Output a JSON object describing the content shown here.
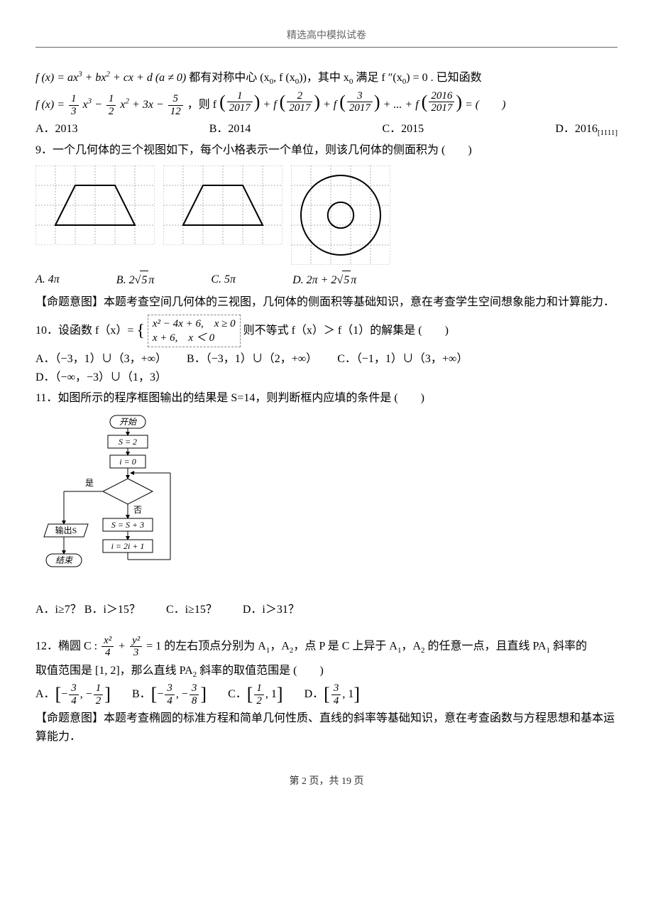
{
  "header": "精选高中模拟试卷",
  "q8": {
    "line1_pre": "f (x) = ax",
    "line1_post": "+ bx",
    "line1_post2": "+ cx + d (a ≠ 0)",
    "line1_text": " 都有对称中心 (x",
    "line1_text2": ", f (x",
    "line1_text3": "))，其中 x",
    "line1_text4": " 满足 f ″(x",
    "line1_text5": ") = 0 . 已知函数",
    "line2_lead": "f (x) = ",
    "frac1n": "1",
    "frac1d": "3",
    "mid1": "x",
    "frac2n": "1",
    "frac2d": "2",
    "mid2": "x",
    "tail2": " + 3x − ",
    "frac3n": "5",
    "frac3d": "12",
    "then": "，则 f",
    "arg1n": "1",
    "arg1d": "2017",
    "plus": "+ f",
    "arg2n": "2",
    "arg2d": "2017",
    "arg3n": "3",
    "arg3d": "2017",
    "dots": "+ ... + f",
    "arg4n": "2016",
    "arg4d": "2017",
    "eq": " = (　　)",
    "optA": "A．2013",
    "optB": "B．2014",
    "optC": "C．2015",
    "optD": "D．2016",
    "optD_extra": "[1111]"
  },
  "q9": {
    "stem": "9．一个几何体的三个视图如下，每个小格表示一个单位，则该几何体的侧面积为 (　　)",
    "optA": "A. 4π",
    "optB_pre": "B. 2",
    "optB_rad": "5",
    "optB_post": "π",
    "optC": "C.  5π",
    "optD_pre": "D.  2π + 2",
    "optD_rad": "5",
    "optD_post": "π",
    "note": "【命题意图】本题考查空间几何体的三视图，几何体的侧面积等基础知识，意在考查学生空间想象能力和计算能力．"
  },
  "q10": {
    "stem_pre": "10．设函数 f（x）= ",
    "piece1": "x² − 4x + 6,　x ≥ 0",
    "piece2": "x + 6,　x ＜ 0",
    "stem_post": " 则不等式 f（x）＞ f（1）的解集是 (　　)",
    "optA": "A．（−3，1）∪（3，+∞）",
    "optB": "B．（−3，1）∪（2，+∞）",
    "optC": "C．（−1，1）∪（3，+∞）",
    "optD": "D．（−∞，−3）∪（1，3）"
  },
  "q11": {
    "stem": "11．如图所示的程序框图输出的结果是 S=14，则判断框内应填的条件是 (　　)",
    "nodes": {
      "start": "开始",
      "s2": "S = 2",
      "i0": "i = 0",
      "yes": "是",
      "no": "否",
      "out": "输出S",
      "ss3": "S = S + 3",
      "i2i1": "i = 2i + 1",
      "end": "结束"
    },
    "optA": "A．i≥7？",
    "optB": "B．i＞15？",
    "optC": "C．i≥15？",
    "optD": "D．i＞31？"
  },
  "q12": {
    "stem_pre": "12．椭圆 C : ",
    "fr1n": "x²",
    "fr1d": "4",
    "plus": " + ",
    "fr2n": "y²",
    "fr2d": "3",
    "stem_mid": " = 1 的左右顶点分别为 A",
    "stem_mid2": "，A",
    "stem_mid3": "，点 P 是 C 上异于 A",
    "stem_mid4": "，A",
    "stem_mid5": " 的任意一点，且直线 PA",
    "stem_tail": " 斜率的",
    "line2_pre": "取值范围是 [1, 2]，那么直线 PA",
    "line2_post": " 斜率的取值范围是 (　　)",
    "optA_l": "A．",
    "optA_fr1n": "3",
    "optA_fr1d": "4",
    "optA_fr2n": "1",
    "optA_fr2d": "2",
    "optB_l": "B．",
    "optB_fr1n": "3",
    "optB_fr1d": "4",
    "optB_fr2n": "3",
    "optB_fr2d": "8",
    "optC_l": "C．",
    "optC_fr1n": "1",
    "optC_fr1d": "2",
    "optD_l": "D．",
    "optD_fr1n": "3",
    "optD_fr1d": "4",
    "note": "【命题意图】本题考查椭圆的标准方程和简单几何性质、直线的斜率等基础知识，意在考查函数与方程思想和基本运算能力．"
  },
  "footer": {
    "pre": "第 ",
    "page": "2",
    "mid": " 页，共 ",
    "total": "19",
    "post": " 页"
  },
  "threeview": {
    "grid_color": "#b0b0b0",
    "shape_color": "#000",
    "cell": 28,
    "trap_cols": 6,
    "trap_rows": 4,
    "circle_size": 5,
    "outer_r": 2,
    "inner_r": 0.65
  },
  "flowchart_style": {
    "box_stroke": "#000",
    "box_fill": "#fff",
    "font": "SimSun",
    "fontsize": 12
  }
}
